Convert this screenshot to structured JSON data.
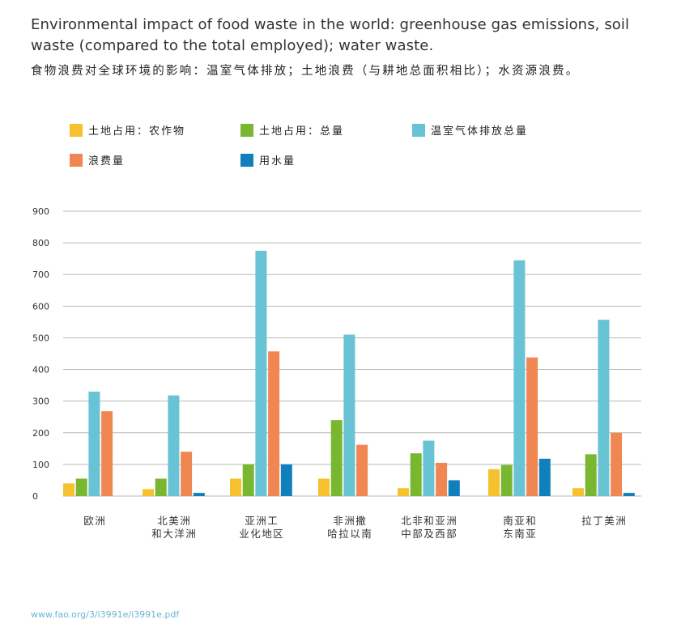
{
  "title_en": "Environmental impact of food waste in the world: greenhouse gas emissions, soil waste (compared to the total employed); water waste.",
  "title_zh": "食物浪费对全球环境的影响：温室气体排放；土地浪费（与耕地总面积相比）；水资源浪费。",
  "source": "www.fao.org/3/i3991e/i3991e.pdf",
  "chart_data": {
    "type": "bar",
    "categories": [
      [
        "欧洲"
      ],
      [
        "北美洲",
        "和大洋洲"
      ],
      [
        "亚洲工",
        "业化地区"
      ],
      [
        "非洲撒",
        "哈拉以南"
      ],
      [
        "北非和亚洲",
        "中部及西部"
      ],
      [
        "南亚和",
        "东南亚"
      ],
      [
        "拉丁美洲"
      ]
    ],
    "ylim": [
      0,
      900
    ],
    "yticks": [
      "0",
      "100",
      "200",
      "300",
      "400",
      "500",
      "600",
      "700",
      "800",
      "900"
    ],
    "grid": true,
    "legend_position": "top",
    "series": [
      {
        "name": "土地占用：农作物",
        "color": "#f6c12e",
        "values": [
          40,
          22,
          55,
          55,
          25,
          85,
          25
        ]
      },
      {
        "name": "土地占用：总量",
        "color": "#79b730",
        "values": [
          55,
          55,
          100,
          240,
          135,
          98,
          132
        ]
      },
      {
        "name": "温室气体排放总量",
        "color": "#68c3d4",
        "values": [
          330,
          318,
          775,
          510,
          175,
          745,
          557
        ]
      },
      {
        "name": "浪费量",
        "color": "#f08752",
        "values": [
          268,
          140,
          457,
          162,
          105,
          438,
          200
        ]
      },
      {
        "name": "用水量",
        "color": "#1080bd",
        "values": [
          0,
          10,
          100,
          0,
          50,
          118,
          10
        ]
      }
    ]
  }
}
